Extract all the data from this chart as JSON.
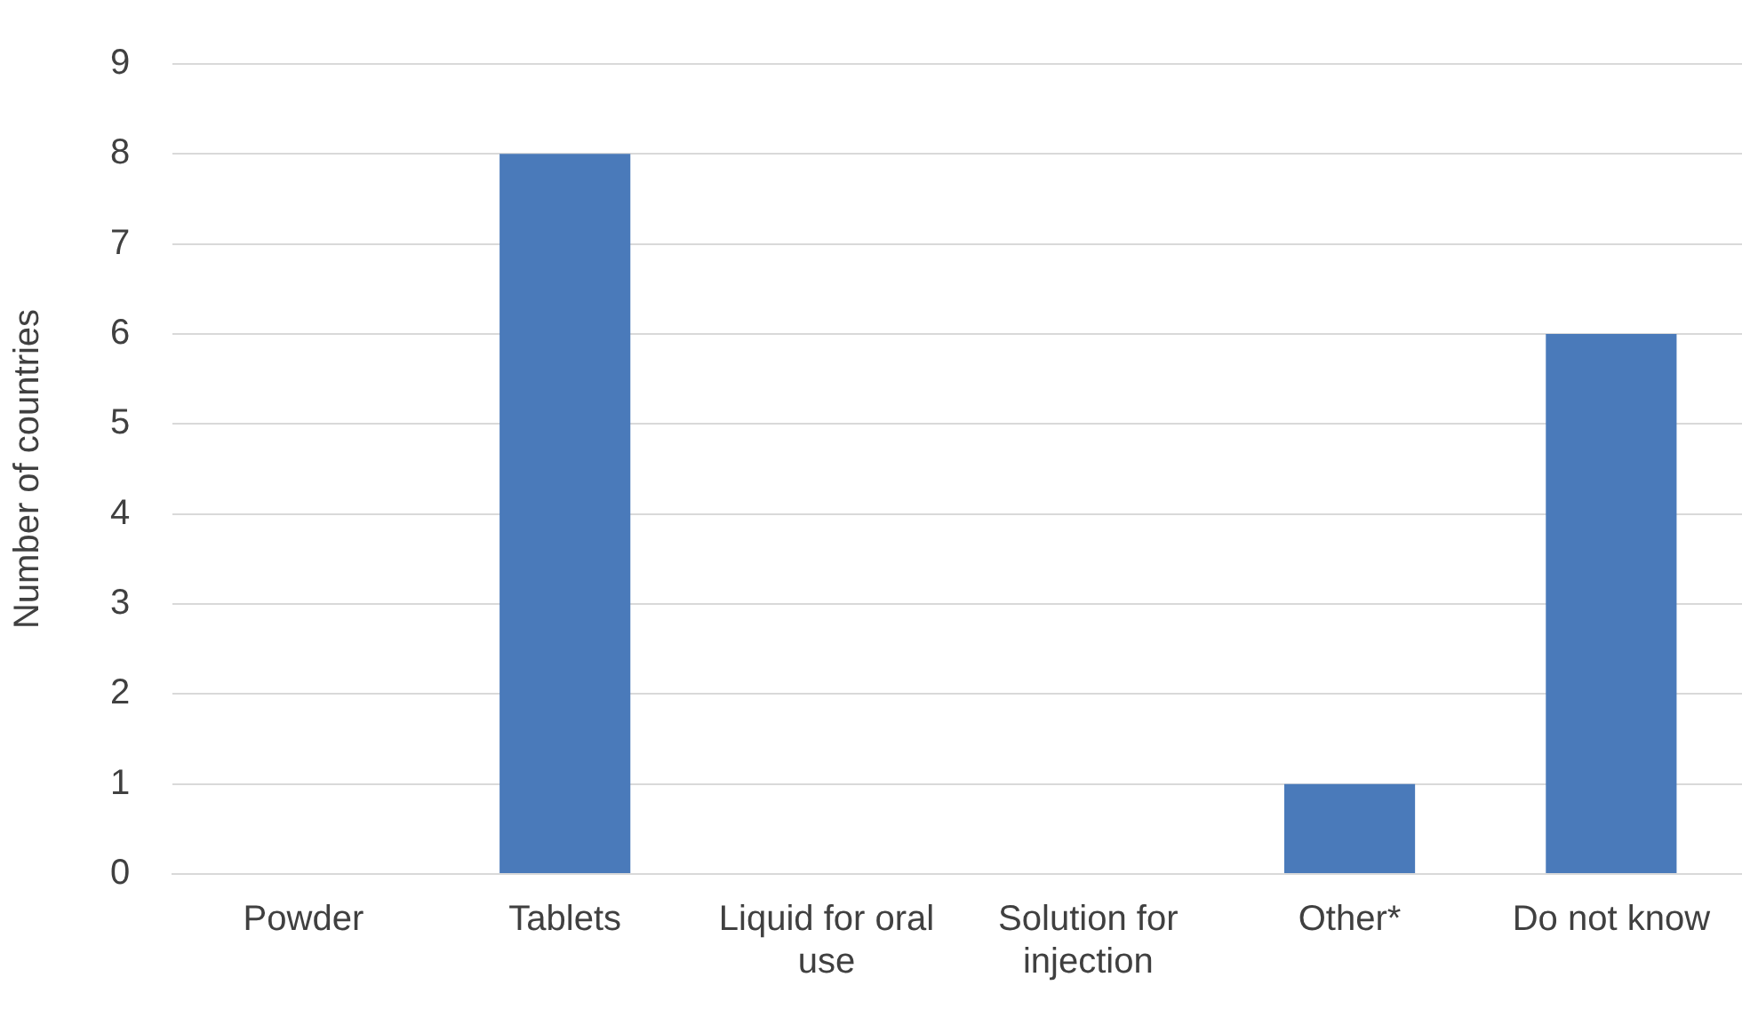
{
  "chart_data": {
    "type": "bar",
    "ylabel": "Number of countries",
    "categories": [
      "Powder",
      "Tablets",
      "Liquid for oral use",
      "Solution for injection",
      "Other*",
      "Do not know"
    ],
    "values": [
      0,
      8,
      0,
      0,
      1,
      6
    ],
    "color": "#4a7aba",
    "ylim": [
      0,
      9
    ],
    "yticks": [
      0,
      1,
      2,
      3,
      4,
      5,
      6,
      7,
      8,
      9
    ],
    "grid": "y",
    "legend": false
  }
}
